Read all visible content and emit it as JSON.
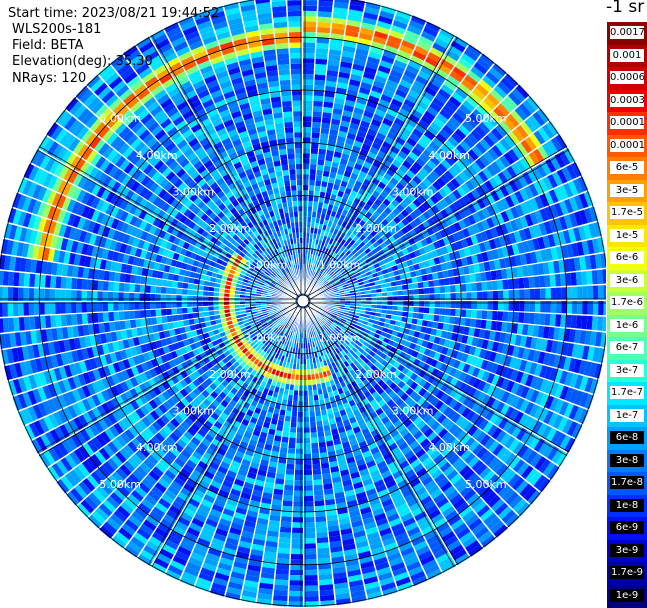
{
  "header": {
    "start_time": "Start time: 2023/08/21 19:44:52",
    "instrument": "WLS200s-181",
    "field": "Field: BETA",
    "elevation": "Elevation(deg): 35.30",
    "nrays": "NRays: 120"
  },
  "colorbar": {
    "title": "-1 sr",
    "labels": [
      "0.0017",
      "0.001",
      "0.0006",
      "0.0003",
      "0.00017",
      "0.0001",
      "6e-5",
      "3e-5",
      "1.7e-5",
      "1e-5",
      "6e-6",
      "3e-6",
      "1.7e-6",
      "1e-6",
      "6e-7",
      "3e-7",
      "1.7e-7",
      "1e-7",
      "6e-8",
      "3e-8",
      "1.7e-8",
      "1e-8",
      "6e-9",
      "3e-9",
      "1.7e-9",
      "1e-9"
    ],
    "colors": [
      "#8b0000",
      "#b00000",
      "#d00000",
      "#f00000",
      "#ff3000",
      "#ff5a00",
      "#ff8000",
      "#ffa000",
      "#ffc400",
      "#ffe600",
      "#f0ff10",
      "#c8ff38",
      "#a0ff60",
      "#78ff88",
      "#50ffb0",
      "#28ffd8",
      "#00e8ff",
      "#00c4ff",
      "#00a0ff",
      "#007cff",
      "#0058ff",
      "#0030ff",
      "#0010f0",
      "#0000d0",
      "#0000a8",
      "#000080"
    ]
  },
  "chart_data": {
    "type": "heatmap",
    "projection": "polar PPI scan",
    "field": "BETA",
    "elevation_deg": 35.3,
    "n_rays": 120,
    "radial_axis": {
      "label_suffix": "km",
      "ticks": [
        "1.00km",
        "2.00km",
        "3.00km",
        "4.00km",
        "5.00km"
      ],
      "max_km": 5.8
    },
    "color_scale": {
      "type": "log",
      "min": 1e-09,
      "max": 0.0017,
      "unit": "-1 sr"
    },
    "background_level": 3e-08,
    "features": [
      {
        "name": "inner ring",
        "azimuth_from_deg": 160,
        "azimuth_to_deg": 305,
        "range_km": 1.45,
        "peak_value": 0.0006
      },
      {
        "name": "outer ring",
        "azimuth_from_deg": 280,
        "azimuth_to_deg": 360,
        "range_km": 5.0,
        "peak_value": 0.0003
      },
      {
        "name": "outer ring",
        "azimuth_from_deg": 0,
        "azimuth_to_deg": 60,
        "range_km": 5.2,
        "peak_value": 0.0003
      }
    ]
  }
}
